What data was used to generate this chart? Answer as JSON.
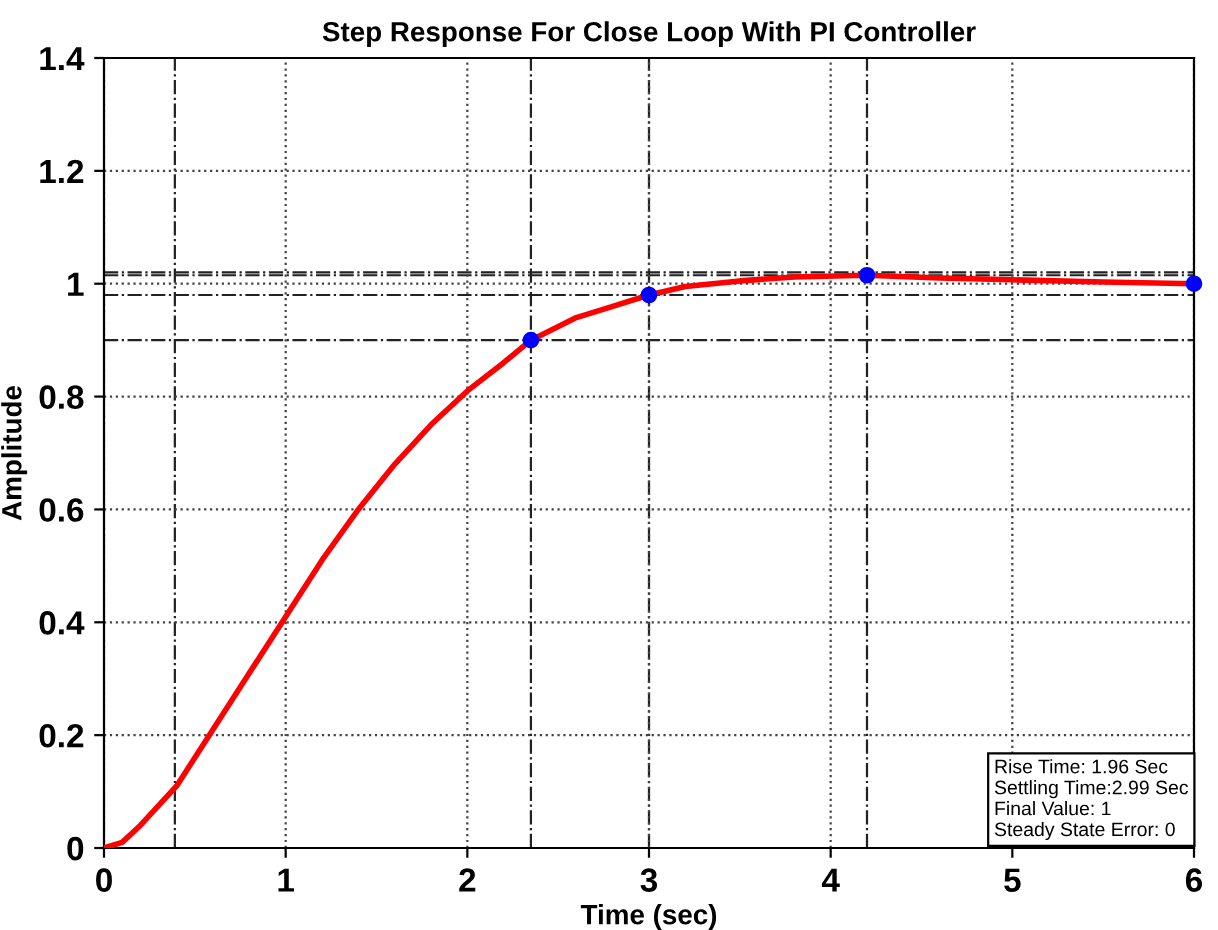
{
  "chart_data": {
    "type": "line",
    "title": "Step Response For Close Loop With PI Controller",
    "xlabel": "Time (sec)",
    "ylabel": "Amplitude",
    "series": [
      {
        "color": "#ff0000",
        "x": [
          0,
          0.1,
          0.2,
          0.4,
          0.6,
          0.8,
          1,
          1.2,
          1.4,
          1.6,
          1.8,
          2.0,
          2.2,
          2.35,
          2.6,
          2.8,
          3.0,
          3.2,
          3.5,
          3.8,
          4.2,
          4.6,
          5,
          5.5,
          6
        ],
        "values": [
          0,
          0.01,
          0.04,
          0.11,
          0.21,
          0.31,
          0.41,
          0.51,
          0.6,
          0.68,
          0.75,
          0.81,
          0.86,
          0.9,
          0.94,
          0.96,
          0.98,
          0.995,
          1.005,
          1.012,
          1.015,
          1.01,
          1.007,
          1.003,
          1.0
        ]
      },
      {
        "type": "scatter",
        "color": "#0000ff",
        "marker": "circle",
        "x": [
          2.35,
          3.0,
          4.2,
          6
        ],
        "values": [
          0.9,
          0.98,
          1.015,
          1.0
        ]
      }
    ],
    "ref_lines": [
      {
        "axis": "x",
        "value": 0.39,
        "line_style": "dashdot"
      },
      {
        "axis": "x",
        "value": 2.35,
        "line_style": "dashdot"
      },
      {
        "axis": "x",
        "value": 3.0,
        "line_style": "dashdot"
      },
      {
        "axis": "x",
        "value": 4.2,
        "line_style": "dashdot"
      },
      {
        "axis": "y",
        "value": 0.9,
        "line_style": "dashdot"
      },
      {
        "axis": "y",
        "value": 0.98,
        "line_style": "dashdot"
      },
      {
        "axis": "y",
        "value": 1.015,
        "line_style": "dashdot"
      },
      {
        "axis": "y",
        "value": 1.02,
        "line_style": "dashdot"
      }
    ],
    "annotations": [
      "Rise Time: 1.96 Sec",
      "Settling Time:2.99 Sec",
      "Final Value: 1",
      "Steady State Error: 0"
    ],
    "xlim": [
      0,
      6
    ],
    "xticks": [
      0,
      1,
      2,
      3,
      4,
      5,
      6
    ],
    "ylim": [
      0,
      1.4
    ],
    "yticks": [
      0,
      0.2,
      0.4,
      0.6,
      0.8,
      1,
      1.2,
      1.4
    ],
    "grid": true,
    "line_style": "solid",
    "legend": false
  }
}
